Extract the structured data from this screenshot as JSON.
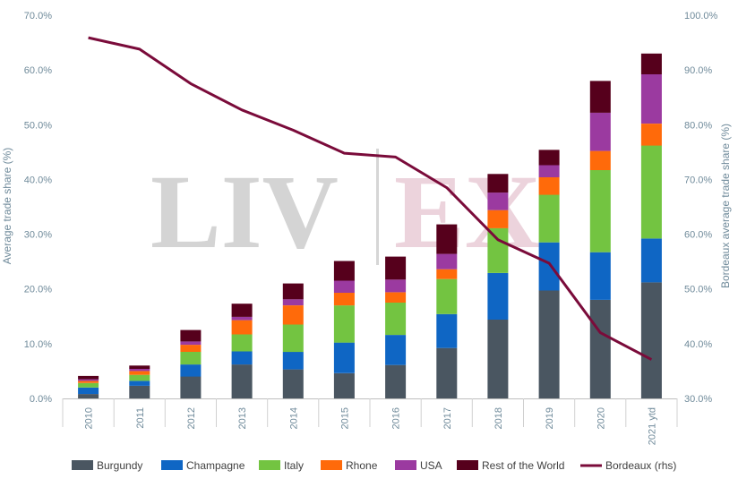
{
  "watermark": {
    "left": "LIV",
    "right": "EX"
  },
  "chart_data": {
    "type": "bar",
    "stacked": true,
    "categories": [
      "2010",
      "2011",
      "2012",
      "2013",
      "2014",
      "2015",
      "2016",
      "2017",
      "2018",
      "2019",
      "2020",
      "2021 ytd"
    ],
    "ylabel": "Average trade share (%)",
    "y2label": "Bordeaux average trade share (%)",
    "ylim": [
      0,
      70
    ],
    "y2lim": [
      30,
      100
    ],
    "yticks": [
      "0.0%",
      "10.0%",
      "20.0%",
      "30.0%",
      "40.0%",
      "50.0%",
      "60.0%",
      "70.0%"
    ],
    "y2ticks": [
      "30.0%",
      "40.0%",
      "50.0%",
      "60.0%",
      "70.0%",
      "80.0%",
      "90.0%",
      "100.0%"
    ],
    "grid": false,
    "legend_position": "bottom",
    "series": [
      {
        "name": "Burgundy",
        "color": "#4a5661",
        "values": [
          0.8,
          2.3,
          4.0,
          6.2,
          5.3,
          4.6,
          6.1,
          9.2,
          14.4,
          19.7,
          18.0,
          21.2
        ]
      },
      {
        "name": "Champagne",
        "color": "#0f66c4",
        "values": [
          1.2,
          0.9,
          2.2,
          2.4,
          3.2,
          5.6,
          5.5,
          6.2,
          8.5,
          8.8,
          8.7,
          8.0
        ]
      },
      {
        "name": "Italy",
        "color": "#73c441",
        "values": [
          0.8,
          1.1,
          2.3,
          3.1,
          5.0,
          6.8,
          5.9,
          6.4,
          8.2,
          8.7,
          15.0,
          17.0
        ]
      },
      {
        "name": "Rhone",
        "color": "#ff6a0a",
        "values": [
          0.4,
          0.7,
          1.3,
          2.6,
          3.5,
          2.3,
          1.9,
          1.8,
          3.3,
          3.2,
          3.5,
          4.0
        ]
      },
      {
        "name": "USA",
        "color": "#9b3aa0",
        "values": [
          0.3,
          0.4,
          0.6,
          0.6,
          1.1,
          2.2,
          2.3,
          2.8,
          3.2,
          2.2,
          7.0,
          9.0
        ]
      },
      {
        "name": "Rest of the World",
        "color": "#56001c",
        "values": [
          0.6,
          0.6,
          2.1,
          2.4,
          2.9,
          3.6,
          4.2,
          5.4,
          3.4,
          2.8,
          5.8,
          3.8
        ]
      }
    ],
    "line": {
      "name": "Bordeaux (rhs)",
      "color": "#7a0b3a",
      "axis": "right",
      "values": [
        95.9,
        93.8,
        87.5,
        82.7,
        79.0,
        74.8,
        74.1,
        68.5,
        59.0,
        54.7,
        42.0,
        37.1
      ]
    }
  }
}
